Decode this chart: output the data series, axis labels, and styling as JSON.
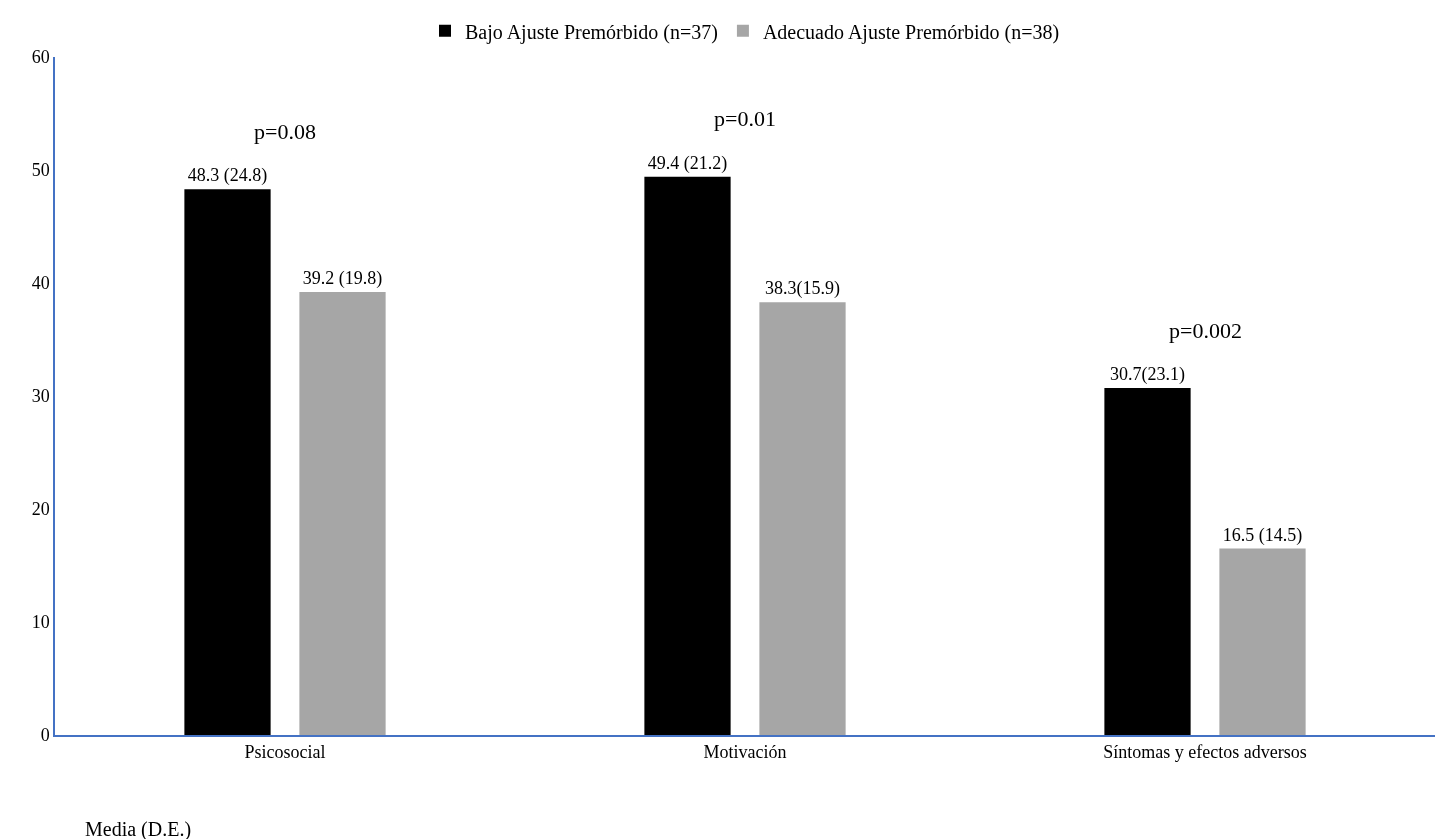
{
  "chart_data": {
    "type": "bar",
    "categories": [
      "Psicosocial",
      "Motivación",
      "Síntomas y efectos adversos"
    ],
    "series": [
      {
        "name": "Bajo Ajuste Premórbido (n=37)",
        "color": "#000000",
        "values": [
          48.3,
          49.4,
          30.7
        ],
        "value_labels": [
          "48.3 (24.8)",
          "49.4 (21.2)",
          "30.7(23.1)"
        ]
      },
      {
        "name": "Adecuado Ajuste Premórbido (n=38)",
        "color": "#a6a6a6",
        "values": [
          39.2,
          38.3,
          16.5
        ],
        "value_labels": [
          "39.2 (19.8)",
          "38.3(15.9)",
          "16.5 (14.5)"
        ]
      }
    ],
    "ylim": [
      0,
      60
    ],
    "yticks": [
      0,
      10,
      20,
      30,
      40,
      50,
      60
    ],
    "legend": "top",
    "annotations": [
      "p=0.08",
      "p=0.01",
      "p=0.002",
      "Media (D.E.)"
    ]
  }
}
